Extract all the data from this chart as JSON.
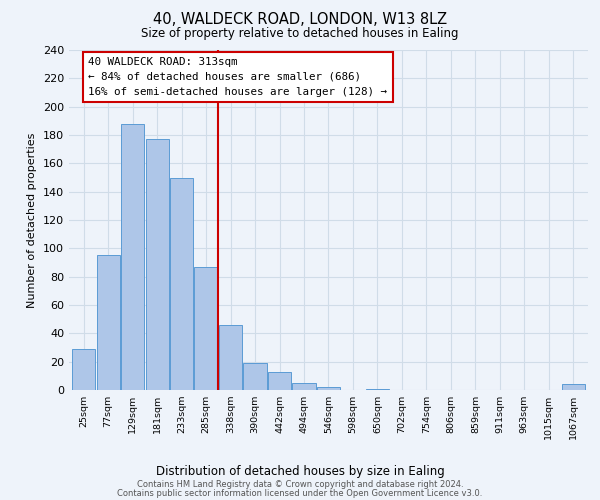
{
  "title1": "40, WALDECK ROAD, LONDON, W13 8LZ",
  "title2": "Size of property relative to detached houses in Ealing",
  "xlabel": "Distribution of detached houses by size in Ealing",
  "ylabel": "Number of detached properties",
  "bin_labels": [
    "25sqm",
    "77sqm",
    "129sqm",
    "181sqm",
    "233sqm",
    "285sqm",
    "338sqm",
    "390sqm",
    "442sqm",
    "494sqm",
    "546sqm",
    "598sqm",
    "650sqm",
    "702sqm",
    "754sqm",
    "806sqm",
    "859sqm",
    "911sqm",
    "963sqm",
    "1015sqm",
    "1067sqm"
  ],
  "bar_heights": [
    29,
    95,
    188,
    177,
    150,
    87,
    46,
    19,
    13,
    5,
    2,
    0,
    1,
    0,
    0,
    0,
    0,
    0,
    0,
    0,
    4
  ],
  "bar_color": "#aec6e8",
  "bar_edge_color": "#5b9bd5",
  "vline_x": 5.5,
  "vline_color": "#cc0000",
  "annotation_text": "40 WALDECK ROAD: 313sqm\n← 84% of detached houses are smaller (686)\n16% of semi-detached houses are larger (128) →",
  "annotation_box_color": "#cc0000",
  "ylim": [
    0,
    240
  ],
  "yticks": [
    0,
    20,
    40,
    60,
    80,
    100,
    120,
    140,
    160,
    180,
    200,
    220,
    240
  ],
  "grid_color": "#d0dce8",
  "footer1": "Contains HM Land Registry data © Crown copyright and database right 2024.",
  "footer2": "Contains public sector information licensed under the Open Government Licence v3.0.",
  "background_color": "#eef3fa"
}
